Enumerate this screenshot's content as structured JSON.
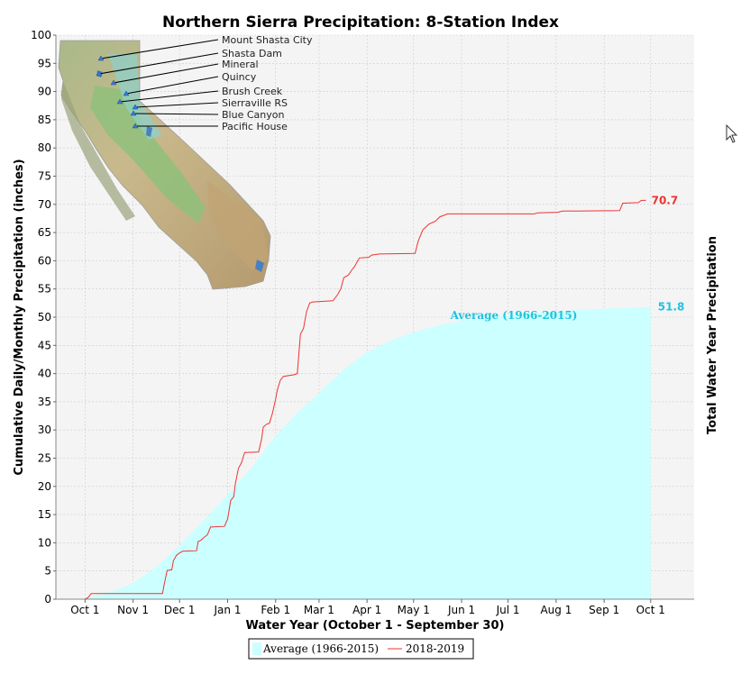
{
  "colors": {
    "average_fill": "#ccffff",
    "average_text": "#1ec3de",
    "current_line": "#ee3333",
    "plot_bg": "#f4f4f4",
    "grid": "#cccccc"
  },
  "chart_data": {
    "type": "area",
    "title": "Northern Sierra Precipitation: 8-Station Index",
    "xlabel": "Water Year (October 1 - September 30)",
    "ylabel": "Cumulative Daily/Monthly Precipitation (inches)",
    "ylabel_right": "Total Water Year Precipitation",
    "ylim": [
      0,
      100
    ],
    "yticks": [
      "0",
      "5",
      "10",
      "15",
      "20",
      "25",
      "30",
      "35",
      "40",
      "45",
      "50",
      "55",
      "60",
      "65",
      "70",
      "75",
      "80",
      "85",
      "90",
      "95",
      "100"
    ],
    "xtick_labels": [
      "Oct 1",
      "Nov 1",
      "Dec 1",
      "Jan 1",
      "Feb 1",
      "Mar 1",
      "Apr 1",
      "May 1",
      "Jun 1",
      "Jul 1",
      "Aug 1",
      "Sep 1",
      "Oct 1"
    ],
    "xtick_days": [
      0,
      31,
      61,
      92,
      123,
      151,
      182,
      212,
      243,
      273,
      304,
      335,
      365
    ],
    "grid": true,
    "legend": [
      "Average (1966-2015)",
      "2018-2019"
    ],
    "legend_position": "bottom",
    "series": [
      {
        "name": "Average (1966-2015)",
        "type": "area",
        "points": [
          [
            0,
            0
          ],
          [
            10,
            1.0
          ],
          [
            20,
            1.6
          ],
          [
            31,
            2.8
          ],
          [
            45,
            5.5
          ],
          [
            61,
            9.5
          ],
          [
            75,
            13.5
          ],
          [
            92,
            18.5
          ],
          [
            108,
            23.5
          ],
          [
            123,
            29
          ],
          [
            137,
            33
          ],
          [
            151,
            36.5
          ],
          [
            166,
            40.5
          ],
          [
            182,
            43.8
          ],
          [
            197,
            45.8
          ],
          [
            212,
            47.3
          ],
          [
            228,
            48.5
          ],
          [
            243,
            49.4
          ],
          [
            258,
            49.9
          ],
          [
            273,
            50.4
          ],
          [
            289,
            50.8
          ],
          [
            304,
            51.0
          ],
          [
            320,
            51.3
          ],
          [
            335,
            51.5
          ],
          [
            350,
            51.7
          ],
          [
            365,
            51.8
          ]
        ],
        "end_label": "51.8",
        "inline_label": "Average (1966-2015)"
      },
      {
        "name": "2018-2019",
        "type": "line",
        "points": [
          [
            0,
            0
          ],
          [
            2,
            0.3
          ],
          [
            4,
            1.0
          ],
          [
            50,
            1.0
          ],
          [
            51,
            2.5
          ],
          [
            53,
            5.1
          ],
          [
            56,
            5.2
          ],
          [
            57,
            6.8
          ],
          [
            59,
            7.8
          ],
          [
            61,
            8.2
          ],
          [
            63,
            8.5
          ],
          [
            72,
            8.6
          ],
          [
            73,
            10.2
          ],
          [
            75,
            10.5
          ],
          [
            77,
            11.0
          ],
          [
            79,
            11.4
          ],
          [
            81,
            12.8
          ],
          [
            90,
            12.9
          ],
          [
            92,
            14.2
          ],
          [
            94,
            17.5
          ],
          [
            96,
            18.2
          ],
          [
            97,
            20.5
          ],
          [
            99,
            23.2
          ],
          [
            101,
            24.2
          ],
          [
            103,
            26.0
          ],
          [
            112,
            26.1
          ],
          [
            114,
            28.5
          ],
          [
            115,
            30.5
          ],
          [
            117,
            31.0
          ],
          [
            119,
            31.2
          ],
          [
            121,
            33.0
          ],
          [
            123,
            35.5
          ],
          [
            124,
            37.0
          ],
          [
            126,
            38.8
          ],
          [
            128,
            39.5
          ],
          [
            135,
            39.8
          ],
          [
            137,
            40.0
          ],
          [
            139,
            47.0
          ],
          [
            141,
            48.0
          ],
          [
            143,
            51.0
          ],
          [
            145,
            52.5
          ],
          [
            147,
            52.7
          ],
          [
            160,
            52.9
          ],
          [
            163,
            54.0
          ],
          [
            165,
            55.0
          ],
          [
            167,
            57.0
          ],
          [
            170,
            57.5
          ],
          [
            172,
            58.3
          ],
          [
            174,
            59.0
          ],
          [
            177,
            60.5
          ],
          [
            183,
            60.6
          ],
          [
            185,
            61.0
          ],
          [
            190,
            61.2
          ],
          [
            213,
            61.3
          ],
          [
            215,
            63.5
          ],
          [
            218,
            65.5
          ],
          [
            222,
            66.5
          ],
          [
            226,
            67.0
          ],
          [
            229,
            67.8
          ],
          [
            234,
            68.3
          ],
          [
            290,
            68.3
          ],
          [
            292,
            68.5
          ],
          [
            305,
            68.6
          ],
          [
            308,
            68.8
          ],
          [
            345,
            68.9
          ],
          [
            347,
            70.2
          ],
          [
            357,
            70.3
          ],
          [
            359,
            70.7
          ],
          [
            362,
            70.7
          ]
        ],
        "end_label": "70.7"
      }
    ]
  },
  "inset_map": {
    "stations": [
      "Mount Shasta City",
      "Shasta Dam",
      "Mineral",
      "Quincy",
      "Brush Creek",
      "Sierraville RS",
      "Blue Canyon",
      "Pacific House"
    ]
  }
}
